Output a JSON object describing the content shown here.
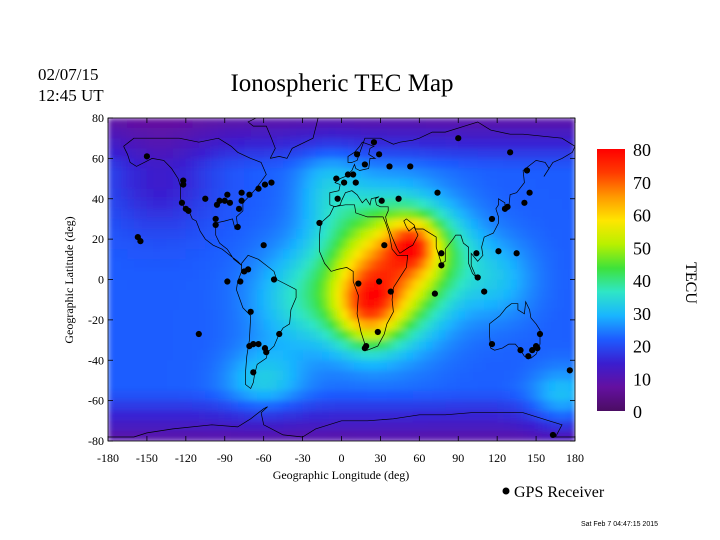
{
  "chart_data": {
    "type": "heatmap",
    "title": "Ionospheric TEC Map",
    "date": "02/07/15",
    "time": "12:45 UT",
    "xlabel": "Geographic Longitude (deg)",
    "ylabel": "Geographic Latitude (deg)",
    "xlim": [
      -180,
      180
    ],
    "ylim": [
      -80,
      80
    ],
    "xticks": [
      -180,
      -150,
      -120,
      -90,
      -60,
      -30,
      0,
      30,
      60,
      90,
      120,
      150,
      180
    ],
    "xtick_labels": [
      "-180",
      "-150",
      "-120",
      "-90",
      "-60",
      "-30",
      "0",
      "30",
      "60",
      "90",
      "120",
      "150",
      "180"
    ],
    "yticks": [
      80,
      60,
      40,
      20,
      0,
      -20,
      -40,
      -60,
      -80
    ],
    "ytick_labels": [
      "80",
      "60",
      "40",
      "20",
      "0",
      "-20",
      "-40",
      "-60",
      "-80"
    ],
    "colorbar": {
      "label": "TECU",
      "ticks": [
        80,
        70,
        60,
        50,
        40,
        30,
        20,
        10,
        0
      ],
      "tick_labels": [
        "80",
        "70",
        "60",
        "50",
        "40",
        "30",
        "20",
        "10",
        "0"
      ],
      "range": [
        0,
        80
      ],
      "stops": [
        "#4b0d63",
        "#6410a0",
        "#3a1ecf",
        "#1e5bff",
        "#19b5ff",
        "#2fe6c6",
        "#3ee23b",
        "#b8f000",
        "#ffe600",
        "#ff9900",
        "#ff3b00",
        "#ff0000"
      ]
    },
    "tec_blobs": [
      {
        "lon": 35,
        "lat": 5,
        "slon": 45,
        "slat": 32,
        "amp": 42
      },
      {
        "lon": 20,
        "lat": -15,
        "slon": 25,
        "slat": 18,
        "amp": 26
      },
      {
        "lon": 55,
        "lat": 18,
        "slon": 18,
        "slat": 12,
        "amp": 20
      },
      {
        "lon": 70,
        "lat": 15,
        "slon": 35,
        "slat": 20,
        "amp": 10
      },
      {
        "lon": -30,
        "lat": -10,
        "slon": 40,
        "slat": 25,
        "amp": 12
      },
      {
        "lon": -60,
        "lat": -50,
        "slon": 30,
        "slat": 15,
        "amp": 10
      },
      {
        "lon": 120,
        "lat": 0,
        "slon": 30,
        "slat": 20,
        "amp": 8
      },
      {
        "lon": 170,
        "lat": -60,
        "slon": 25,
        "slat": 15,
        "amp": 10
      },
      {
        "lon": -10,
        "lat": 45,
        "slon": 25,
        "slat": 20,
        "amp": 8
      },
      {
        "lon": -140,
        "lat": 50,
        "slon": 40,
        "slat": 25,
        "amp": -8
      }
    ],
    "tec_base": 22,
    "receivers": [
      [
        -157,
        21
      ],
      [
        -155,
        19
      ],
      [
        -150,
        61
      ],
      [
        -110,
        -27
      ],
      [
        -122,
        47
      ],
      [
        -123,
        38
      ],
      [
        -120,
        35
      ],
      [
        -118,
        34
      ],
      [
        -122,
        49
      ],
      [
        -105,
        40
      ],
      [
        -97,
        30
      ],
      [
        -97,
        27
      ],
      [
        -96,
        37
      ],
      [
        -94,
        39
      ],
      [
        -90,
        39
      ],
      [
        -88,
        42
      ],
      [
        -86,
        38
      ],
      [
        -80,
        26
      ],
      [
        -79,
        35
      ],
      [
        -77,
        39
      ],
      [
        -77,
        43
      ],
      [
        -71,
        42
      ],
      [
        -64,
        45
      ],
      [
        -59,
        47
      ],
      [
        -54,
        48
      ],
      [
        -88,
        -1
      ],
      [
        -78,
        -1
      ],
      [
        -75,
        4
      ],
      [
        -72,
        5
      ],
      [
        -70,
        -16
      ],
      [
        -68,
        -32
      ],
      [
        -64,
        -32
      ],
      [
        -71,
        -33
      ],
      [
        -59,
        -34
      ],
      [
        -58,
        -36
      ],
      [
        -68,
        -46
      ],
      [
        -52,
        0
      ],
      [
        -60,
        17
      ],
      [
        -48,
        -27
      ],
      [
        -17,
        28
      ],
      [
        -3,
        40
      ],
      [
        -4,
        50
      ],
      [
        2,
        48
      ],
      [
        5,
        52
      ],
      [
        9,
        52
      ],
      [
        11,
        48
      ],
      [
        18,
        57
      ],
      [
        12,
        62
      ],
      [
        25,
        68
      ],
      [
        29,
        62
      ],
      [
        37,
        56
      ],
      [
        31,
        39
      ],
      [
        44,
        40
      ],
      [
        53,
        56
      ],
      [
        74,
        43
      ],
      [
        77,
        13
      ],
      [
        77,
        7
      ],
      [
        72,
        -7
      ],
      [
        33,
        17
      ],
      [
        13,
        -2
      ],
      [
        29,
        -1
      ],
      [
        38,
        -6
      ],
      [
        28,
        -26
      ],
      [
        18,
        -34
      ],
      [
        19,
        -33
      ],
      [
        105,
        1
      ],
      [
        104,
        13
      ],
      [
        110,
        -6
      ],
      [
        116,
        30
      ],
      [
        121,
        14
      ],
      [
        126,
        35
      ],
      [
        128,
        36
      ],
      [
        130,
        63
      ],
      [
        135,
        13
      ],
      [
        141,
        38
      ],
      [
        143,
        54
      ],
      [
        147,
        -35
      ],
      [
        150,
        -33
      ],
      [
        151,
        -34
      ],
      [
        153,
        -27
      ],
      [
        176,
        -45
      ],
      [
        163,
        -77
      ],
      [
        116,
        -32
      ],
      [
        138,
        -35
      ],
      [
        144,
        -38
      ],
      [
        145,
        43
      ],
      [
        90,
        70
      ]
    ],
    "legend": {
      "label": "GPS Receiver",
      "location": "bottom-right"
    },
    "timestamp": "Sat Feb  7 04:47:15 2015"
  }
}
